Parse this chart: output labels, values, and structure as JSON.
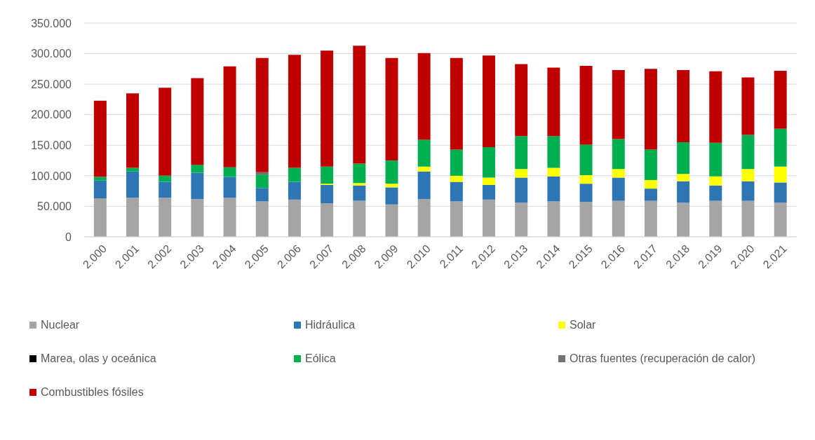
{
  "chart_data": {
    "type": "bar",
    "stacked": true,
    "categories": [
      "2.000",
      "2.001",
      "2.002",
      "2.003",
      "2.004",
      "2.005",
      "2.006",
      "2.007",
      "2.008",
      "2.009",
      "2.010",
      "2.011",
      "2.012",
      "2.013",
      "2.014",
      "2.015",
      "2.016",
      "2.017",
      "2.018",
      "2.019",
      "2.020",
      "2.021"
    ],
    "series": [
      {
        "name": "Nuclear",
        "color": "#a5a5a5",
        "values": [
          63000,
          64000,
          64000,
          62000,
          64000,
          58000,
          61000,
          55000,
          59000,
          53000,
          62000,
          58000,
          61000,
          56000,
          58000,
          57000,
          59000,
          59000,
          56000,
          59000,
          59000,
          56000
        ]
      },
      {
        "name": "Hidráulica",
        "color": "#2e75b6",
        "values": [
          29000,
          43000,
          26000,
          43000,
          34000,
          22000,
          29000,
          30000,
          25000,
          28000,
          45000,
          32000,
          24000,
          41000,
          41000,
          30000,
          38000,
          20000,
          35000,
          25000,
          32000,
          33000
        ]
      },
      {
        "name": "Solar",
        "color": "#ffff00",
        "values": [
          0,
          0,
          0,
          0,
          0,
          0,
          0,
          2000,
          4000,
          6000,
          8000,
          10000,
          12000,
          14000,
          14000,
          14000,
          14000,
          14000,
          12000,
          15000,
          20000,
          26000
        ]
      },
      {
        "name": "Marea, olas y oceánica",
        "color": "#000000",
        "values": [
          0,
          0,
          0,
          0,
          0,
          0,
          0,
          0,
          0,
          0,
          0,
          0,
          0,
          0,
          0,
          0,
          0,
          0,
          0,
          0,
          0,
          0
        ]
      },
      {
        "name": "Eólica",
        "color": "#00b050",
        "values": [
          6000,
          6000,
          10000,
          13000,
          16000,
          22000,
          23000,
          28000,
          32000,
          38000,
          44000,
          43000,
          50000,
          54000,
          52000,
          50000,
          49000,
          50000,
          52000,
          55000,
          56000,
          62000
        ]
      },
      {
        "name": "Otras fuentes (recuperación de calor)",
        "color": "#767171",
        "values": [
          0,
          0,
          0,
          0,
          0,
          4000,
          0,
          0,
          0,
          0,
          0,
          0,
          0,
          0,
          0,
          0,
          0,
          0,
          0,
          0,
          0,
          0
        ]
      },
      {
        "name": "Combustibles fósiles",
        "color": "#c00000",
        "values": [
          125000,
          122000,
          144000,
          142000,
          165000,
          187000,
          185000,
          190000,
          193000,
          168000,
          142000,
          150000,
          150000,
          118000,
          112000,
          129000,
          113000,
          132000,
          118000,
          117000,
          94000,
          95000
        ]
      }
    ],
    "ylim": [
      0,
      350000
    ],
    "yticks": [
      0,
      {
        "value": 50000,
        "label": "50.000"
      },
      {
        "value": 100000,
        "label": "100.000"
      },
      {
        "value": 150000,
        "label": "150.000"
      },
      {
        "value": 200000,
        "label": "200.000"
      },
      {
        "value": 250000,
        "label": "250.000"
      },
      {
        "value": 300000,
        "label": "300.000"
      },
      {
        "value": 350000,
        "label": "350.000"
      }
    ],
    "grid": "y",
    "legend": "bottom"
  }
}
